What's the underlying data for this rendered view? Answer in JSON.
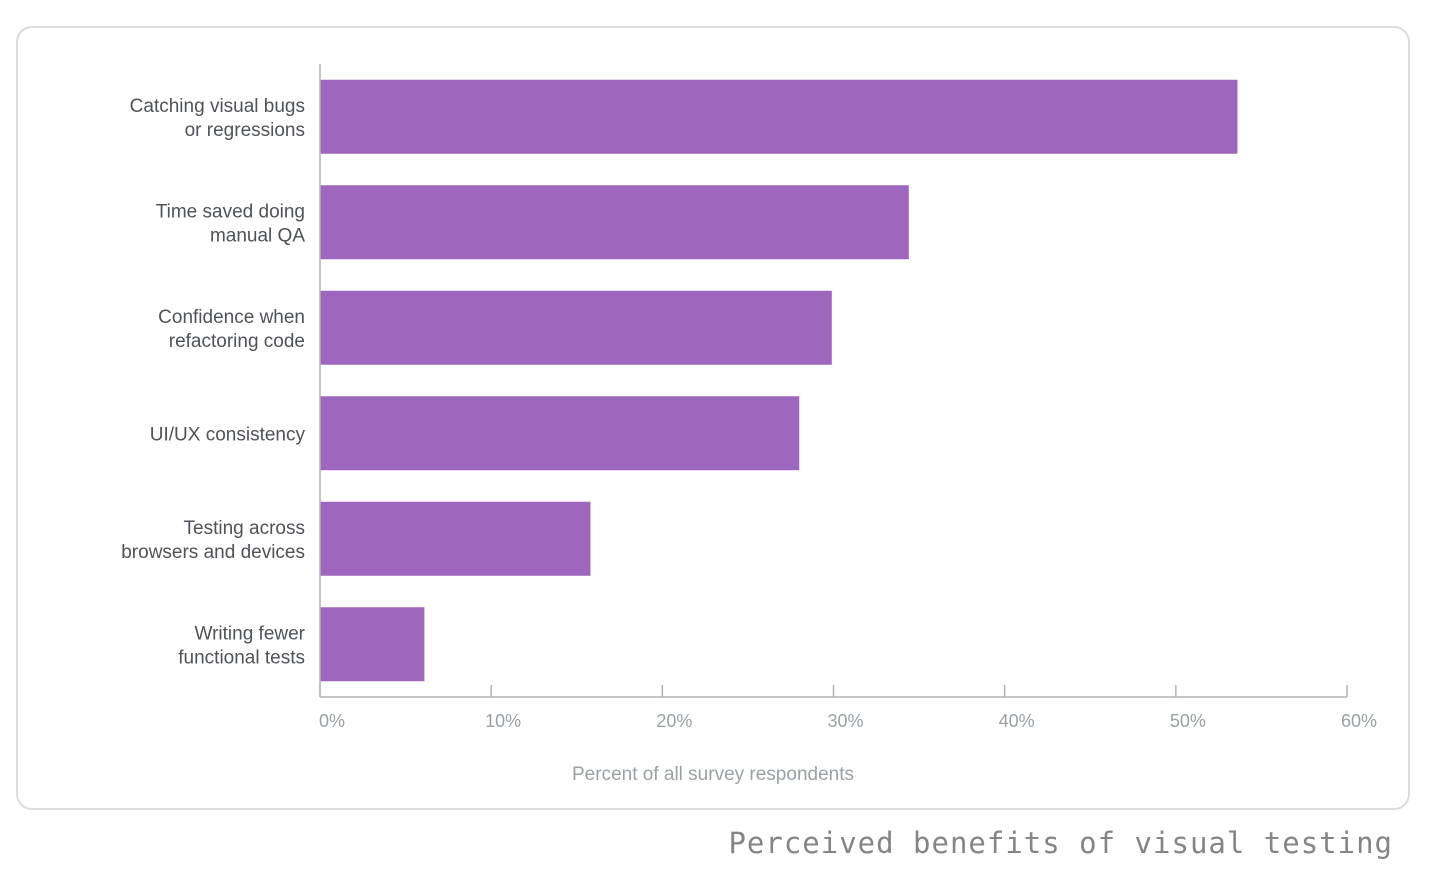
{
  "caption": "Perceived benefits of visual testing",
  "colors": {
    "bar": "#9e66be",
    "axis": "#b3b3b3",
    "category_label": "#4f5258",
    "tick_label": "#9aa0a6"
  },
  "chart_data": {
    "type": "bar",
    "orientation": "horizontal",
    "title": "",
    "categories": [
      [
        "Catching visual bugs",
        "or regressions"
      ],
      [
        "Time saved doing",
        "manual QA"
      ],
      [
        "Confidence when",
        "refactoring code"
      ],
      [
        "UI/UX consistency"
      ],
      [
        "Testing across",
        "browsers and devices"
      ],
      [
        "Writing fewer",
        "functional tests"
      ]
    ],
    "values": [
      53.6,
      34.4,
      29.9,
      28.0,
      15.8,
      6.1
    ],
    "xlabel": "Percent of all survey respondents",
    "ylabel": "",
    "xlim": [
      0,
      60
    ],
    "ticks": [
      0,
      10,
      20,
      30,
      40,
      50,
      60
    ],
    "tick_labels": [
      "0%",
      "10%",
      "20%",
      "30%",
      "40%",
      "50%",
      "60%"
    ],
    "grid": false,
    "legend": "none"
  }
}
